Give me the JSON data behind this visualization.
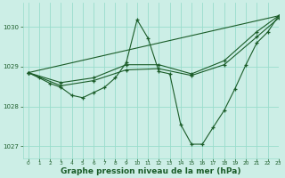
{
  "background_color": "#cceee6",
  "grid_color": "#99ddcc",
  "line_color": "#1a5c28",
  "marker_color": "#1a5c28",
  "xlabel": "Graphe pression niveau de la mer (hPa)",
  "xlabel_fontsize": 6.5,
  "xlim": [
    -0.5,
    23
  ],
  "ylim": [
    1026.7,
    1030.6
  ],
  "yticks": [
    1027,
    1028,
    1029,
    1030
  ],
  "xticks": [
    0,
    1,
    2,
    3,
    4,
    5,
    6,
    7,
    8,
    9,
    10,
    11,
    12,
    13,
    14,
    15,
    16,
    17,
    18,
    19,
    20,
    21,
    22,
    23
  ],
  "series": [
    {
      "x": [
        0,
        1,
        2,
        3,
        4,
        5,
        6,
        7,
        8,
        9,
        10,
        11,
        12,
        13,
        14,
        15,
        16,
        17,
        18,
        19,
        20,
        21,
        22,
        23
      ],
      "y": [
        1028.85,
        1028.72,
        1028.58,
        1028.48,
        1028.28,
        1028.22,
        1028.35,
        1028.48,
        1028.72,
        1029.1,
        1030.18,
        1029.72,
        1028.88,
        1028.82,
        1027.55,
        1027.05,
        1027.05,
        1027.48,
        1027.9,
        1028.45,
        1029.05,
        1029.6,
        1029.87,
        1030.28
      ]
    },
    {
      "x": [
        0,
        3,
        6,
        9,
        12,
        15,
        18,
        21,
        23
      ],
      "y": [
        1028.85,
        1028.6,
        1028.72,
        1029.05,
        1029.05,
        1028.82,
        1029.15,
        1029.88,
        1030.28
      ]
    },
    {
      "x": [
        0,
        3,
        6,
        9,
        12,
        15,
        18,
        21,
        23
      ],
      "y": [
        1028.85,
        1028.52,
        1028.65,
        1028.92,
        1028.95,
        1028.78,
        1029.05,
        1029.75,
        1030.22
      ]
    },
    {
      "x": [
        0,
        23
      ],
      "y": [
        1028.85,
        1030.28
      ]
    }
  ]
}
